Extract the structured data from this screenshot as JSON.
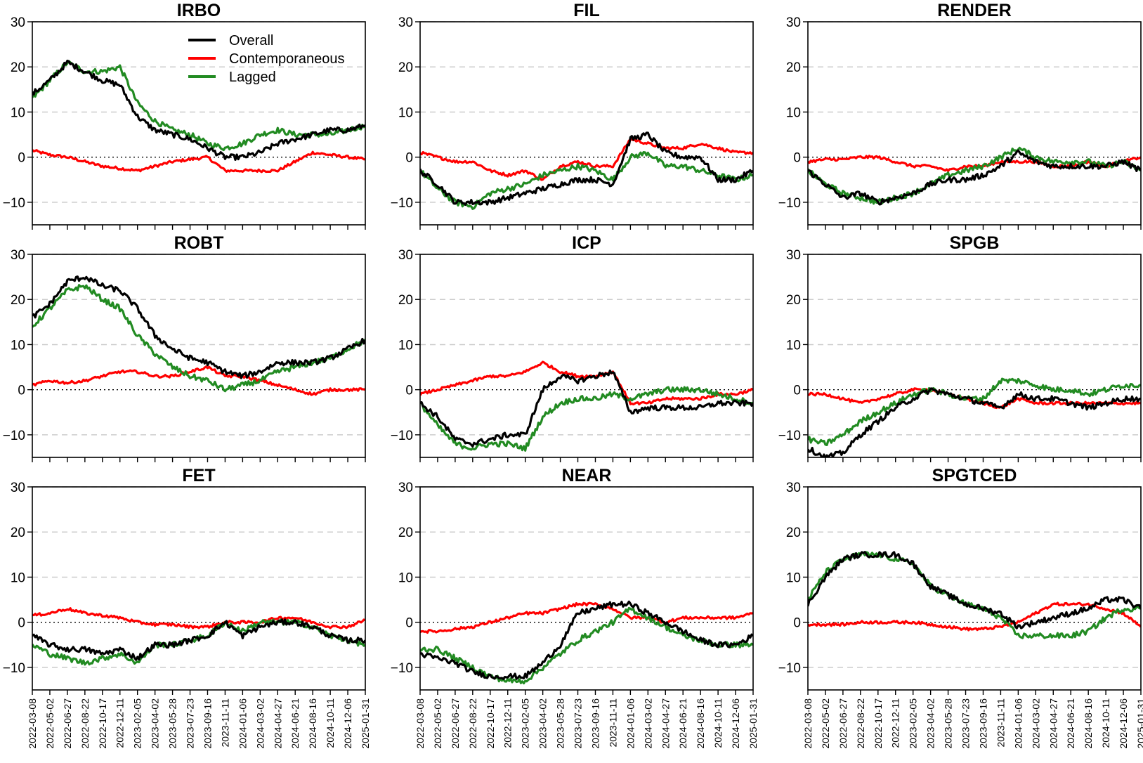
{
  "figure": {
    "legend": {
      "placement": "inside top of first panel",
      "entries": [
        {
          "label": "Overall",
          "color": "#000000"
        },
        {
          "label": "Contemporaneous",
          "color": "#ff0000"
        },
        {
          "label": "Lagged",
          "color": "#228b22"
        }
      ]
    },
    "colors": {
      "overall": "#000000",
      "contemporaneous": "#ff0000",
      "lagged": "#228b22",
      "grid": "#cccccc",
      "zero_line": "#000000"
    }
  },
  "chart_data": [
    {
      "type": "line",
      "title": "IRBO",
      "x": [
        "2022-03-08",
        "2022-05-02",
        "2022-06-27",
        "2022-08-22",
        "2022-10-17",
        "2022-12-11",
        "2023-02-05",
        "2023-04-02",
        "2023-05-28",
        "2023-07-23",
        "2023-09-16",
        "2023-11-11",
        "2024-01-06",
        "2024-03-02",
        "2024-04-27",
        "2024-06-21",
        "2024-08-16",
        "2024-10-11",
        "2024-12-06",
        "2025-01-31"
      ],
      "ylim": [
        -15,
        30
      ],
      "yticks": [
        -10,
        0,
        10,
        20,
        30
      ],
      "grid": "horizontal dashed",
      "series": [
        {
          "name": "Overall",
          "values": [
            14,
            17,
            21,
            19,
            17,
            16,
            9,
            6,
            5,
            4,
            2,
            0,
            0,
            1,
            3,
            4,
            5,
            6,
            6,
            7
          ]
        },
        {
          "name": "Contemporaneous",
          "values": [
            1.5,
            0.5,
            0,
            -1,
            -2,
            -2.5,
            -3,
            -2,
            -1,
            -0.5,
            0,
            -3,
            -3,
            -3,
            -3,
            -1,
            1,
            0.5,
            0,
            -0.5
          ]
        },
        {
          "name": "Lagged",
          "values": [
            13,
            17,
            21,
            19,
            19,
            20,
            12,
            8,
            6,
            5,
            3,
            2,
            3,
            5,
            6,
            5,
            5,
            5,
            6,
            7
          ]
        }
      ]
    },
    {
      "type": "line",
      "title": "FIL",
      "x": [
        "2022-03-08",
        "2022-05-02",
        "2022-06-27",
        "2022-08-22",
        "2022-10-17",
        "2022-12-11",
        "2023-02-05",
        "2023-04-02",
        "2023-05-28",
        "2023-07-23",
        "2023-09-16",
        "2023-11-11",
        "2024-01-06",
        "2024-03-02",
        "2024-04-27",
        "2024-06-21",
        "2024-08-16",
        "2024-10-11",
        "2024-12-06",
        "2025-01-31"
      ],
      "ylim": [
        -15,
        30
      ],
      "yticks": [
        -10,
        0,
        10,
        20,
        30
      ],
      "grid": "horizontal dashed",
      "series": [
        {
          "name": "Overall",
          "values": [
            -3,
            -6,
            -10,
            -10,
            -10,
            -9,
            -8,
            -7,
            -6,
            -5,
            -5,
            -6,
            4,
            5,
            1,
            0,
            0,
            -5,
            -5,
            -3
          ]
        },
        {
          "name": "Contemporaneous",
          "values": [
            1,
            0,
            -1,
            -1,
            -3,
            -4,
            -3,
            -5,
            -2,
            -1,
            -2,
            -2,
            4,
            3,
            2,
            2,
            3,
            2,
            1,
            1
          ]
        },
        {
          "name": "Lagged",
          "values": [
            -3,
            -7,
            -10,
            -11,
            -8,
            -7,
            -6,
            -4,
            -3,
            -2,
            -3,
            -5,
            0,
            1,
            -2,
            -2,
            -3,
            -4,
            -5,
            -4
          ]
        }
      ]
    },
    {
      "type": "line",
      "title": "RENDER",
      "x": [
        "2022-03-08",
        "2022-05-02",
        "2022-06-27",
        "2022-08-22",
        "2022-10-17",
        "2022-12-11",
        "2023-02-05",
        "2023-04-02",
        "2023-05-28",
        "2023-07-23",
        "2023-09-16",
        "2023-11-11",
        "2024-01-06",
        "2024-03-02",
        "2024-04-27",
        "2024-06-21",
        "2024-08-16",
        "2024-10-11",
        "2024-12-06",
        "2025-01-31"
      ],
      "ylim": [
        -15,
        30
      ],
      "yticks": [
        -10,
        0,
        10,
        20,
        30
      ],
      "grid": "horizontal dashed",
      "series": [
        {
          "name": "Overall",
          "values": [
            -3,
            -6,
            -9,
            -8,
            -10,
            -9,
            -8,
            -6,
            -5,
            -5,
            -4,
            -2,
            1,
            -1,
            -2,
            -2,
            -2,
            -2,
            -1,
            -3
          ]
        },
        {
          "name": "Contemporaneous",
          "values": [
            -1,
            -0.5,
            -0.5,
            0,
            0,
            -1,
            -2,
            -2,
            -3,
            -2,
            -2,
            -1,
            -1,
            -1,
            -2,
            -2,
            -1,
            -2,
            -1,
            0
          ]
        },
        {
          "name": "Lagged",
          "values": [
            -3,
            -6,
            -8,
            -9,
            -10,
            -9,
            -8,
            -6,
            -4,
            -3,
            -2,
            0,
            2,
            0,
            -1,
            -1,
            -1,
            -2,
            -1,
            -3
          ]
        }
      ]
    },
    {
      "type": "line",
      "title": "ROBT",
      "x": [
        "2022-03-08",
        "2022-05-02",
        "2022-06-27",
        "2022-08-22",
        "2022-10-17",
        "2022-12-11",
        "2023-02-05",
        "2023-04-02",
        "2023-05-28",
        "2023-07-23",
        "2023-09-16",
        "2023-11-11",
        "2024-01-06",
        "2024-03-02",
        "2024-04-27",
        "2024-06-21",
        "2024-08-16",
        "2024-10-11",
        "2024-12-06",
        "2025-01-31"
      ],
      "ylim": [
        -15,
        30
      ],
      "yticks": [
        -10,
        0,
        10,
        20,
        30
      ],
      "grid": "horizontal dashed",
      "series": [
        {
          "name": "Overall",
          "values": [
            16,
            19,
            24,
            25,
            23,
            22,
            18,
            12,
            9,
            7,
            6,
            4,
            3,
            4,
            6,
            6,
            6,
            7,
            9,
            11
          ]
        },
        {
          "name": "Contemporaneous",
          "values": [
            1,
            2,
            1.5,
            2,
            3,
            4,
            4,
            3,
            3,
            4,
            5,
            3,
            3,
            2,
            1,
            0,
            -1,
            0,
            0,
            0
          ]
        },
        {
          "name": "Lagged",
          "values": [
            14,
            18,
            22,
            23,
            20,
            18,
            12,
            8,
            5,
            3,
            2,
            0,
            1,
            2,
            4,
            5,
            6,
            7,
            9,
            11
          ]
        }
      ]
    },
    {
      "type": "line",
      "title": "ICP",
      "x": [
        "2022-03-08",
        "2022-05-02",
        "2022-06-27",
        "2022-08-22",
        "2022-10-17",
        "2022-12-11",
        "2023-02-05",
        "2023-04-02",
        "2023-05-28",
        "2023-07-23",
        "2023-09-16",
        "2023-11-11",
        "2024-01-06",
        "2024-03-02",
        "2024-04-27",
        "2024-06-21",
        "2024-08-16",
        "2024-10-11",
        "2024-12-06",
        "2025-01-31"
      ],
      "ylim": [
        -15,
        30
      ],
      "yticks": [
        -10,
        0,
        10,
        20,
        30
      ],
      "grid": "horizontal dashed",
      "series": [
        {
          "name": "Overall",
          "values": [
            -3,
            -6,
            -11,
            -12,
            -11,
            -10,
            -10,
            0,
            3,
            2,
            3,
            4,
            -5,
            -4,
            -4,
            -4,
            -4,
            -3,
            -3,
            -3
          ]
        },
        {
          "name": "Contemporaneous",
          "values": [
            -1,
            0,
            1,
            2,
            3,
            3,
            4,
            6,
            4,
            3,
            3,
            4,
            -3,
            -3,
            -2,
            -2,
            -2,
            -1,
            -1,
            0
          ]
        },
        {
          "name": "Lagged",
          "values": [
            -3,
            -8,
            -12,
            -13,
            -12,
            -12,
            -13,
            -6,
            -3,
            -2,
            -2,
            -1,
            -2,
            -1,
            0,
            0,
            0,
            -1,
            -2,
            -3
          ]
        }
      ]
    },
    {
      "type": "line",
      "title": "SPGB",
      "x": [
        "2022-03-08",
        "2022-05-02",
        "2022-06-27",
        "2022-08-22",
        "2022-10-17",
        "2022-12-11",
        "2023-02-05",
        "2023-04-02",
        "2023-05-28",
        "2023-07-23",
        "2023-09-16",
        "2023-11-11",
        "2024-01-06",
        "2024-03-02",
        "2024-04-27",
        "2024-06-21",
        "2024-08-16",
        "2024-10-11",
        "2024-12-06",
        "2025-01-31"
      ],
      "ylim": [
        -15,
        30
      ],
      "yticks": [
        -10,
        0,
        10,
        20,
        30
      ],
      "grid": "horizontal dashed",
      "series": [
        {
          "name": "Overall",
          "values": [
            -13,
            -15,
            -14,
            -10,
            -7,
            -4,
            -2,
            0,
            -1,
            -2,
            -3,
            -4,
            -1,
            -2,
            -2,
            -3,
            -4,
            -3,
            -2,
            -2
          ]
        },
        {
          "name": "Contemporaneous",
          "values": [
            -1,
            -1,
            -2,
            -3,
            -2,
            -1,
            0,
            0,
            -1,
            -2,
            -3,
            -4,
            -2,
            -3,
            -3,
            -3,
            -3,
            -3,
            -3,
            -3
          ]
        },
        {
          "name": "Lagged",
          "values": [
            -11,
            -12,
            -10,
            -7,
            -5,
            -3,
            -1,
            0,
            -1,
            -2,
            -2,
            2,
            2,
            1,
            0,
            0,
            -1,
            0,
            1,
            1
          ]
        }
      ]
    },
    {
      "type": "line",
      "title": "FET",
      "x": [
        "2022-03-08",
        "2022-05-02",
        "2022-06-27",
        "2022-08-22",
        "2022-10-17",
        "2022-12-11",
        "2023-02-05",
        "2023-04-02",
        "2023-05-28",
        "2023-07-23",
        "2023-09-16",
        "2023-11-11",
        "2024-01-06",
        "2024-03-02",
        "2024-04-27",
        "2024-06-21",
        "2024-08-16",
        "2024-10-11",
        "2024-12-06",
        "2025-01-31"
      ],
      "ylim": [
        -15,
        30
      ],
      "yticks": [
        -10,
        0,
        10,
        20,
        30
      ],
      "grid": "horizontal dashed",
      "series": [
        {
          "name": "Overall",
          "values": [
            -3,
            -5,
            -6,
            -6,
            -7,
            -6,
            -8,
            -5,
            -5,
            -4,
            -3,
            0,
            -3,
            -1,
            0,
            0,
            -1,
            -3,
            -4,
            -4
          ]
        },
        {
          "name": "Contemporaneous",
          "values": [
            1.5,
            2,
            3,
            2,
            1.5,
            1,
            0,
            -0.5,
            -0.5,
            -1,
            -1,
            0,
            0,
            0,
            1,
            1,
            0,
            -1,
            -1,
            0.5
          ]
        },
        {
          "name": "Lagged",
          "values": [
            -5,
            -7,
            -8,
            -9,
            -8,
            -7,
            -9,
            -5,
            -5,
            -4,
            -3,
            0,
            -2,
            0,
            0,
            0,
            -1,
            -3,
            -4,
            -5
          ]
        }
      ]
    },
    {
      "type": "line",
      "title": "NEAR",
      "x": [
        "2022-03-08",
        "2022-05-02",
        "2022-06-27",
        "2022-08-22",
        "2022-10-17",
        "2022-12-11",
        "2023-02-05",
        "2023-04-02",
        "2023-05-28",
        "2023-07-23",
        "2023-09-16",
        "2023-11-11",
        "2024-01-06",
        "2024-03-02",
        "2024-04-27",
        "2024-06-21",
        "2024-08-16",
        "2024-10-11",
        "2024-12-06",
        "2025-01-31"
      ],
      "ylim": [
        -15,
        30
      ],
      "yticks": [
        -10,
        0,
        10,
        20,
        30
      ],
      "grid": "horizontal dashed",
      "series": [
        {
          "name": "Overall",
          "values": [
            -7,
            -8,
            -9,
            -11,
            -12,
            -12,
            -12,
            -9,
            -5,
            2,
            3,
            4,
            4,
            2,
            0,
            -2,
            -4,
            -5,
            -5,
            -3
          ]
        },
        {
          "name": "Contemporaneous",
          "values": [
            -2,
            -2,
            -1.5,
            -1,
            0,
            1,
            2,
            2,
            3,
            4,
            4,
            3,
            1,
            1,
            0,
            1,
            1,
            1,
            1,
            2
          ]
        },
        {
          "name": "Lagged",
          "values": [
            -6,
            -6,
            -8,
            -10,
            -12,
            -13,
            -13,
            -10,
            -7,
            -4,
            -2,
            0,
            3,
            1,
            -1,
            -3,
            -4,
            -5,
            -5,
            -5
          ]
        }
      ]
    },
    {
      "type": "line",
      "title": "SPGTCED",
      "x": [
        "2022-03-08",
        "2022-05-02",
        "2022-06-27",
        "2022-08-22",
        "2022-10-17",
        "2022-12-11",
        "2023-02-05",
        "2023-04-02",
        "2023-05-28",
        "2023-07-23",
        "2023-09-16",
        "2023-11-11",
        "2024-01-06",
        "2024-03-02",
        "2024-04-27",
        "2024-06-21",
        "2024-08-16",
        "2024-10-11",
        "2024-12-06",
        "2025-01-31"
      ],
      "ylim": [
        -15,
        30
      ],
      "yticks": [
        -10,
        0,
        10,
        20,
        30
      ],
      "grid": "horizontal dashed",
      "series": [
        {
          "name": "Overall",
          "values": [
            4,
            10,
            14,
            15,
            15,
            15,
            13,
            8,
            6,
            4,
            3,
            2,
            -1,
            0,
            1,
            2,
            3,
            5,
            5,
            3
          ]
        },
        {
          "name": "Contemporaneous",
          "values": [
            -0.5,
            -0.5,
            -0.5,
            0,
            0,
            0,
            0,
            -0.5,
            -1,
            -1.5,
            -1.5,
            -1,
            0,
            2,
            4,
            4,
            4,
            3,
            2,
            -1
          ]
        },
        {
          "name": "Lagged",
          "values": [
            5,
            11,
            14,
            15,
            15,
            14,
            13,
            8,
            6,
            4,
            3,
            1,
            -3,
            -3,
            -3,
            -3,
            -2,
            1,
            3,
            3
          ]
        }
      ]
    }
  ]
}
